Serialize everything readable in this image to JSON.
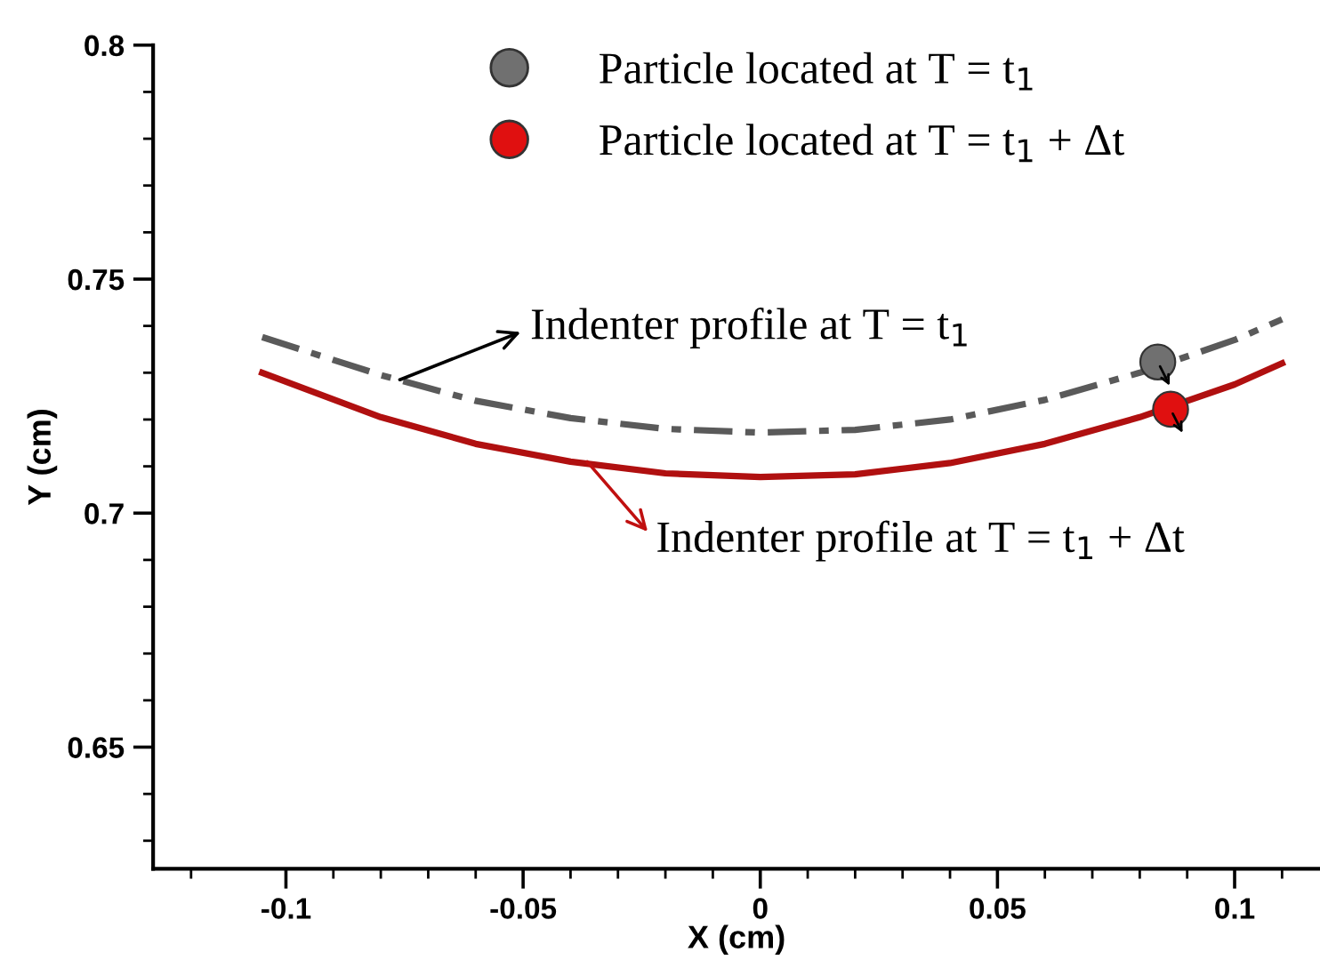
{
  "chart_data": {
    "type": "line",
    "xlabel": "X (cm)",
    "ylabel": "Y (cm)",
    "xlim": [
      -0.128,
      0.118
    ],
    "ylim": [
      0.624,
      0.8
    ],
    "xticks": [
      {
        "value": -0.12,
        "label": null
      },
      -0.1,
      {
        "value": -0.09,
        "label": null
      },
      {
        "value": -0.08,
        "label": null
      },
      {
        "value": -0.07,
        "label": null
      },
      {
        "value": -0.06,
        "label": null
      },
      -0.05,
      {
        "value": -0.04,
        "label": null
      },
      {
        "value": -0.03,
        "label": null
      },
      {
        "value": -0.02,
        "label": null
      },
      {
        "value": -0.01,
        "label": null
      },
      0,
      {
        "value": 0.01,
        "label": null
      },
      {
        "value": 0.02,
        "label": null
      },
      {
        "value": 0.03,
        "label": null
      },
      {
        "value": 0.04,
        "label": null
      },
      0.05,
      {
        "value": 0.06,
        "label": null
      },
      {
        "value": 0.07,
        "label": null
      },
      {
        "value": 0.08,
        "label": null
      },
      {
        "value": 0.09,
        "label": null
      },
      0.1,
      {
        "value": 0.11,
        "label": null
      }
    ],
    "yticks": [
      {
        "value": 0.63,
        "label": null
      },
      {
        "value": 0.64,
        "label": null
      },
      0.65,
      {
        "value": 0.66,
        "label": null
      },
      {
        "value": 0.67,
        "label": null
      },
      {
        "value": 0.68,
        "label": null
      },
      {
        "value": 0.69,
        "label": null
      },
      0.7,
      {
        "value": 0.71,
        "label": null
      },
      {
        "value": 0.72,
        "label": null
      },
      {
        "value": 0.73,
        "label": null
      },
      {
        "value": 0.74,
        "label": null
      },
      0.75,
      {
        "value": 0.76,
        "label": null
      },
      {
        "value": 0.77,
        "label": null
      },
      {
        "value": 0.78,
        "label": null
      },
      {
        "value": 0.79,
        "label": null
      },
      0.8
    ],
    "grid": false,
    "legend": "top",
    "series": [
      {
        "color": "#5a5a5a",
        "line_style": "dashed",
        "x": [
          -0.105,
          -0.08,
          -0.06,
          -0.04,
          -0.02,
          0,
          0.02,
          0.04,
          0.06,
          0.08,
          0.1,
          0.11
        ],
        "values": [
          0.7376,
          0.7295,
          0.724,
          0.7203,
          0.718,
          0.7172,
          0.7178,
          0.72,
          0.7242,
          0.73,
          0.737,
          0.7414
        ]
      },
      {
        "color": "#b01010",
        "line_style": "solid",
        "x": [
          -0.105,
          -0.08,
          -0.06,
          -0.04,
          -0.02,
          0,
          0.02,
          0.04,
          0.06,
          0.08,
          0.1,
          0.11
        ],
        "values": [
          0.73,
          0.7205,
          0.7148,
          0.711,
          0.7085,
          0.7077,
          0.7083,
          0.7107,
          0.7148,
          0.7205,
          0.7275,
          0.732
        ]
      },
      {
        "type": "scatter",
        "name": "Particle located at T = t$_{1}$",
        "color": "#707070",
        "marker": "circle",
        "x": [
          0.0838
        ],
        "values": [
          0.7323
        ]
      },
      {
        "type": "scatter",
        "name": "Particle located at T = t$_{1}$ + Δt",
        "color": "#e01010",
        "marker": "circle",
        "x": [
          0.0865
        ],
        "values": [
          0.7222
        ]
      }
    ],
    "annotations": [
      {
        "text": "Indenter profile at T = t$_{1}$",
        "x": -0.076,
        "y": 0.7285
      },
      {
        "text": "Indenter profile at T = t$_{1}$ + Δt",
        "x": -0.0365,
        "y": 0.711
      }
    ]
  }
}
